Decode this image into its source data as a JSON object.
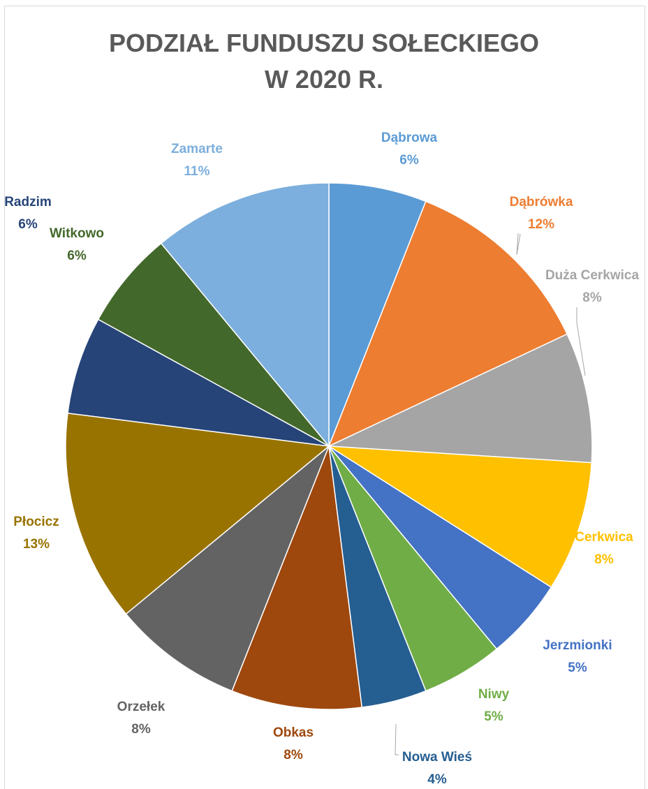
{
  "chart_data": {
    "type": "pie",
    "title": "PODZIAŁ FUNDUSZU SOŁECKIEGO",
    "subtitle": "W 2020 R.",
    "legend": "none",
    "slices": [
      {
        "label": "Dąbrowa",
        "value": 6,
        "display": "6%",
        "color": "#5b9bd5"
      },
      {
        "label": "Dąbrówka",
        "value": 12,
        "display": "12%",
        "color": "#ed7d31"
      },
      {
        "label": "Duża Cerkwica",
        "value": 8,
        "display": "8%",
        "color": "#a5a5a5"
      },
      {
        "label": "Cerkwica",
        "value": 8,
        "display": "8%",
        "color": "#ffc000"
      },
      {
        "label": "Jerzmionki",
        "value": 5,
        "display": "5%",
        "color": "#4472c4"
      },
      {
        "label": "Niwy",
        "value": 5,
        "display": "5%",
        "color": "#70ad47"
      },
      {
        "label": "Nowa Wieś",
        "value": 4,
        "display": "4%",
        "color": "#255e91"
      },
      {
        "label": "Obkas",
        "value": 8,
        "display": "8%",
        "color": "#9e480e"
      },
      {
        "label": "Orzełek",
        "value": 8,
        "display": "8%",
        "color": "#636363"
      },
      {
        "label": "Płocicz",
        "value": 13,
        "display": "13%",
        "color": "#997300"
      },
      {
        "label": "Radzim",
        "value": 6,
        "display": "6%",
        "color": "#264478"
      },
      {
        "label": "Witkowo",
        "value": 6,
        "display": "6%",
        "color": "#43682b"
      },
      {
        "label": "Zamarte",
        "value": 11,
        "display": "11%",
        "color": "#7cafdd"
      }
    ]
  }
}
